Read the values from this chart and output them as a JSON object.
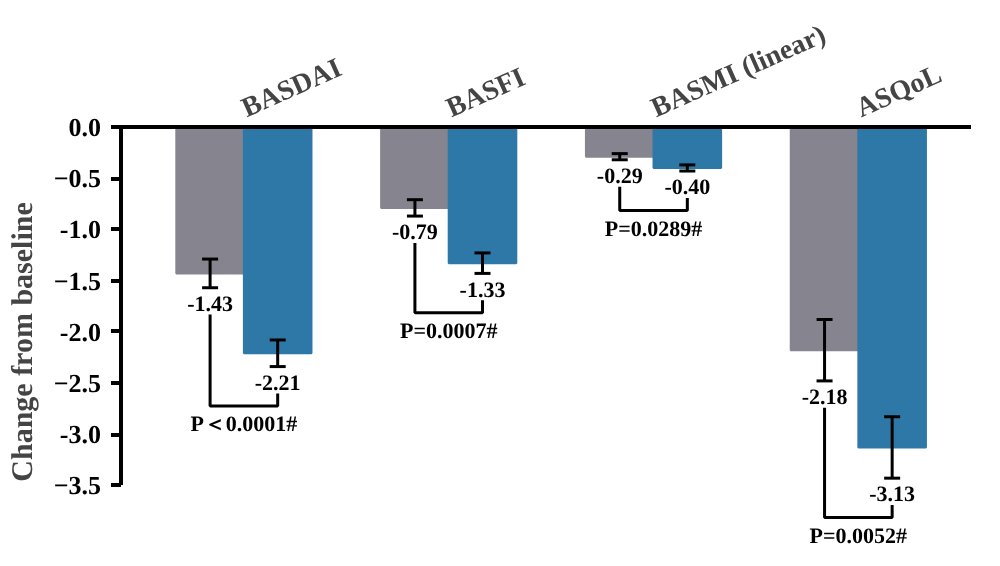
{
  "chart_data": {
    "type": "bar",
    "ylabel": "Change from baseline",
    "categories": [
      "BASDAI",
      "BASFI",
      "BASMI (linear)",
      "ASQoL"
    ],
    "series": [
      {
        "color": "#86848f",
        "values": [
          -1.43,
          -0.79,
          -0.29,
          -2.18
        ],
        "errors": [
          0.14,
          0.08,
          0.03,
          0.3
        ],
        "value_labels": [
          "-1.43",
          "-0.79",
          "-0.29",
          "-2.18"
        ]
      },
      {
        "color": "#2e78a8",
        "values": [
          -2.21,
          -1.33,
          -0.4,
          -3.13
        ],
        "errors": [
          0.13,
          0.1,
          0.03,
          0.3
        ],
        "value_labels": [
          "-2.21",
          "-1.33",
          "-0.40",
          "-3.13"
        ]
      }
    ],
    "ylim": [
      -3.5,
      0
    ],
    "yticks": [
      {
        "value": 0,
        "label": "0.0"
      },
      -0.5,
      {
        "value": -1,
        "label": "-1.0"
      },
      -1.5,
      {
        "value": -2,
        "label": "-2.0"
      },
      -2.5,
      {
        "value": -3,
        "label": "-3.0"
      },
      -3.5
    ],
    "grid": false,
    "annotations": [
      "P＜0.0001#",
      "P=0.0007#",
      "P=0.0289#",
      "P=0.0052#"
    ]
  }
}
